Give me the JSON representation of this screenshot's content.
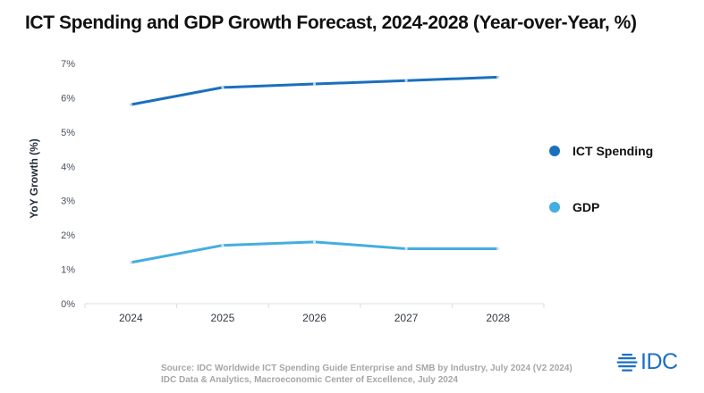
{
  "title": "ICT Spending and GDP Growth Forecast, 2024-2028 (Year-over-Year, %)",
  "chart_data": {
    "type": "line",
    "title": "ICT Spending and GDP Growth Forecast, 2024-2028 (Year-over-Year, %)",
    "xlabel": "",
    "ylabel": "YoY Growth (%)",
    "categories": [
      "2024",
      "2025",
      "2026",
      "2027",
      "2028"
    ],
    "yticks": [
      "0%",
      "1%",
      "2%",
      "3%",
      "4%",
      "5%",
      "6%",
      "7%"
    ],
    "ylim": [
      0,
      7
    ],
    "grid": false,
    "legend_position": "right",
    "series": [
      {
        "name": "ICT Spending",
        "color": "#1a70bd",
        "values": [
          5.8,
          6.3,
          6.4,
          6.5,
          6.6
        ]
      },
      {
        "name": "GDP",
        "color": "#45ade0",
        "values": [
          1.2,
          1.7,
          1.8,
          1.6,
          1.6
        ]
      }
    ]
  },
  "source": {
    "line1": "Source: IDC Worldwide ICT Spending Guide Enterprise and SMB by Industry, July 2024 (V2 2024)",
    "line2": "IDC Data & Analytics, Macroeconomic Center of Excellence, July 2024"
  },
  "logo": {
    "text": "IDC",
    "icon": "idc-globe-icon",
    "color": "#1b6fc3"
  }
}
